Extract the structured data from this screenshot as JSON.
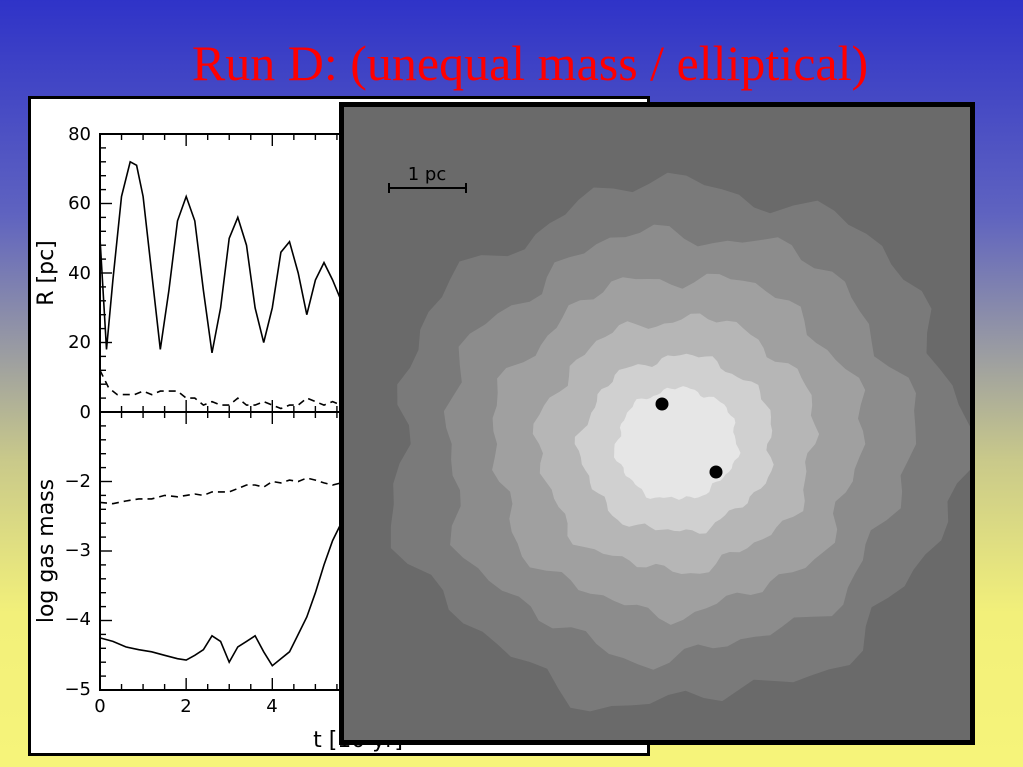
{
  "slide": {
    "title": "Run D: (unequal mass / elliptical)"
  },
  "plot": {
    "top_panel": {
      "ylabel": "R [pc]",
      "yticks": [
        "80",
        "60",
        "40",
        "20",
        "0"
      ],
      "ylim": [
        0,
        80
      ]
    },
    "bottom_panel": {
      "ylabel": "log gas mass",
      "yticks": [
        "−2",
        "−3",
        "−4",
        "−5"
      ],
      "ylim": [
        -5,
        -1
      ]
    },
    "xlabel": "t [10  yr]",
    "xticks": [
      "0",
      "2",
      "4"
    ],
    "xlim": [
      0,
      13
    ]
  },
  "simulation": {
    "scale_bar_label": "1 pc",
    "colors": {
      "background": "#6a6a6a",
      "contour_1": "#7a7a7a",
      "contour_2": "#8c8c8c",
      "contour_3": "#a0a0a0",
      "contour_4": "#b6b6b6",
      "contour_5": "#d0d0d0",
      "core": "#e6e6e6"
    }
  },
  "chart_data": [
    {
      "type": "line",
      "title": "",
      "xlabel": "t [10  yr]",
      "ylabel": "R [pc]",
      "xlim": [
        0,
        13
      ],
      "ylim": [
        0,
        80
      ],
      "series": [
        {
          "style": "solid",
          "x": [
            0,
            0.15,
            0.3,
            0.5,
            0.7,
            0.85,
            1.0,
            1.2,
            1.4,
            1.6,
            1.8,
            2.0,
            2.2,
            2.4,
            2.6,
            2.8,
            3.0,
            3.2,
            3.4,
            3.6,
            3.8,
            4.0,
            4.2,
            4.4,
            4.6,
            4.8,
            5.0,
            5.2,
            5.4,
            5.6,
            5.8
          ],
          "y": [
            50,
            18,
            38,
            62,
            72,
            71,
            62,
            40,
            18,
            35,
            55,
            62,
            55,
            35,
            17,
            30,
            50,
            56,
            48,
            30,
            20,
            30,
            46,
            49,
            40,
            28,
            38,
            43,
            38,
            32,
            30
          ]
        },
        {
          "style": "dashed",
          "x": [
            0,
            0.2,
            0.4,
            0.6,
            0.8,
            1.0,
            1.2,
            1.4,
            1.6,
            1.8,
            2.0,
            2.2,
            2.4,
            2.6,
            2.8,
            3.0,
            3.2,
            3.4,
            3.6,
            3.8,
            4.0,
            4.2,
            4.4,
            4.6,
            4.8,
            5.0,
            5.2,
            5.4,
            5.6,
            5.8
          ],
          "y": [
            12,
            7,
            5,
            5,
            5,
            6,
            5,
            6,
            6,
            6,
            4,
            4,
            2,
            3,
            2,
            2,
            4,
            2,
            2,
            3,
            2,
            1,
            2,
            2,
            4,
            3,
            2,
            3,
            2,
            2
          ]
        }
      ]
    },
    {
      "type": "line",
      "title": "",
      "xlabel": "t [10  yr]",
      "ylabel": "log gas mass",
      "xlim": [
        0,
        13
      ],
      "ylim": [
        -5,
        -1
      ],
      "series": [
        {
          "style": "solid",
          "x": [
            0,
            0.3,
            0.6,
            0.9,
            1.2,
            1.5,
            1.8,
            2.0,
            2.2,
            2.4,
            2.6,
            2.8,
            3.0,
            3.2,
            3.4,
            3.6,
            3.8,
            4.0,
            4.2,
            4.4,
            4.6,
            4.8,
            5.0,
            5.2,
            5.4,
            5.6,
            5.8,
            6.0
          ],
          "y": [
            -4.25,
            -4.3,
            -4.38,
            -4.42,
            -4.45,
            -4.5,
            -4.55,
            -4.57,
            -4.5,
            -4.42,
            -4.22,
            -4.3,
            -4.6,
            -4.38,
            -4.3,
            -4.22,
            -4.45,
            -4.65,
            -4.55,
            -4.45,
            -4.2,
            -3.95,
            -3.6,
            -3.2,
            -2.85,
            -2.6,
            -2.4,
            -2.3
          ]
        },
        {
          "style": "dashed",
          "x": [
            0,
            0.3,
            0.6,
            0.9,
            1.2,
            1.5,
            1.8,
            2.0,
            2.2,
            2.4,
            2.6,
            2.8,
            3.0,
            3.2,
            3.4,
            3.6,
            3.8,
            4.0,
            4.2,
            4.4,
            4.6,
            4.8,
            5.0,
            5.2,
            5.4,
            5.6,
            5.8
          ],
          "y": [
            -2.3,
            -2.32,
            -2.28,
            -2.25,
            -2.25,
            -2.2,
            -2.22,
            -2.2,
            -2.18,
            -2.2,
            -2.15,
            -2.15,
            -2.15,
            -2.1,
            -2.05,
            -2.05,
            -2.08,
            -2.0,
            -2.02,
            -1.98,
            -2.0,
            -1.95,
            -1.98,
            -2.02,
            -2.05,
            -2.02,
            -2.05
          ]
        }
      ]
    }
  ]
}
